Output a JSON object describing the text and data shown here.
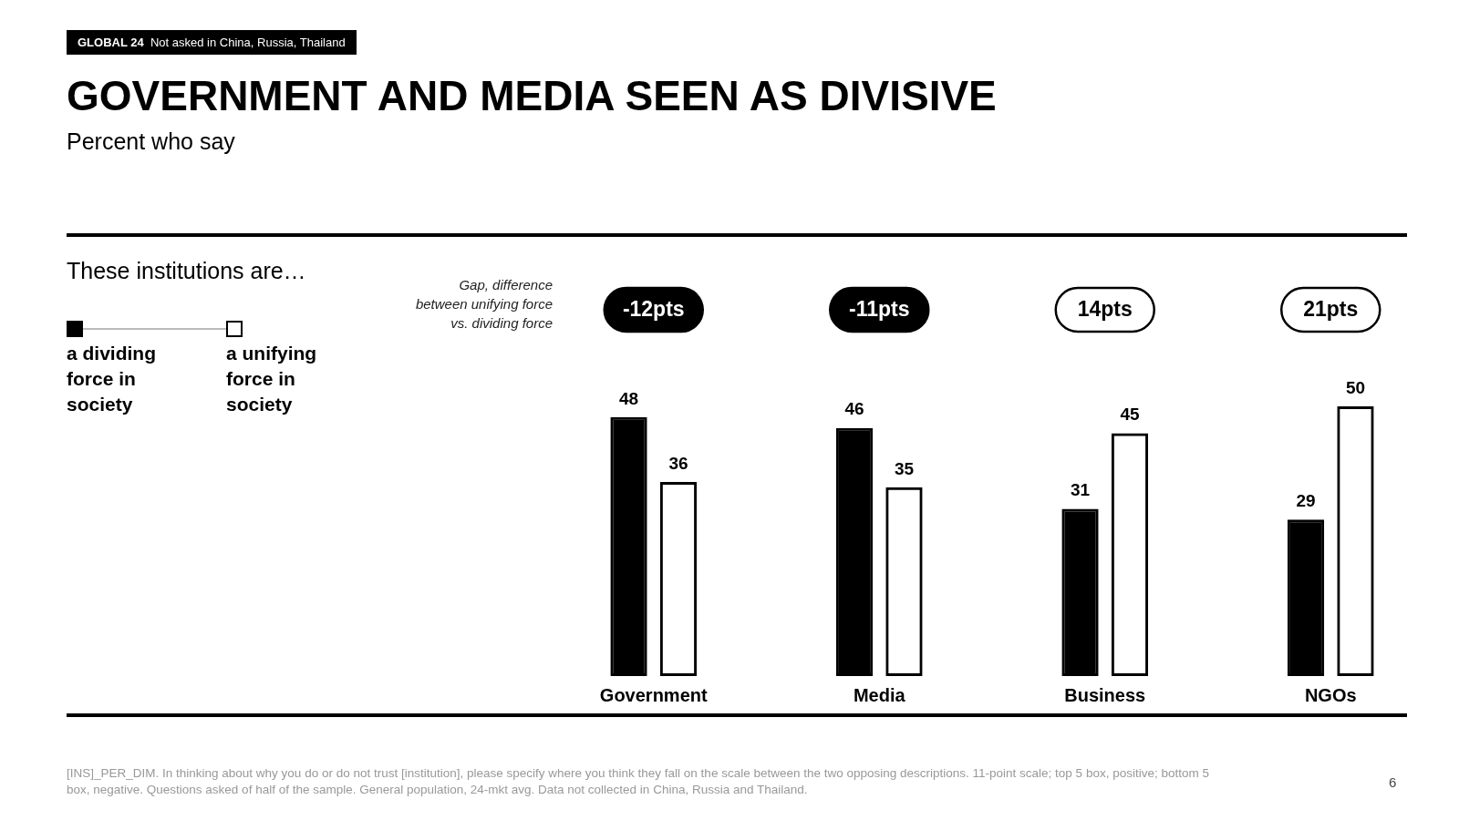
{
  "chart_data": {
    "type": "bar",
    "title": "GOVERNMENT AND MEDIA SEEN AS DIVISIVE",
    "subtitle": "Percent who say",
    "legend_title": "These institutions are…",
    "categories": [
      "Government",
      "Media",
      "Business",
      "NGOs"
    ],
    "series": [
      {
        "name": "a dividing force in society",
        "color": "#000000",
        "values": [
          48,
          46,
          31,
          29
        ]
      },
      {
        "name": "a unifying force in society",
        "color": "#000000",
        "values": [
          36,
          35,
          45,
          50
        ]
      }
    ],
    "data_labels": true,
    "grid": false,
    "legend": "top left",
    "annotations": [
      "GLOBAL 24",
      "Not asked in China, Russia, Thailand",
      "Gap, difference between unifying force vs. dividing force",
      "[INS]_PER_DIM. In thinking about why you do or do not trust [institution], please specify where you think they fall on the scale between the two opposing descriptions. 11-point scale; top 5 box, positive; bottom 5 box, negative. Questions asked of half of the sample. General population, 24-mkt avg. Data not collected in China, Russia and Thailand.",
      "6",
      "-12pts",
      "-11pts",
      "14pts",
      "21pts"
    ]
  }
}
